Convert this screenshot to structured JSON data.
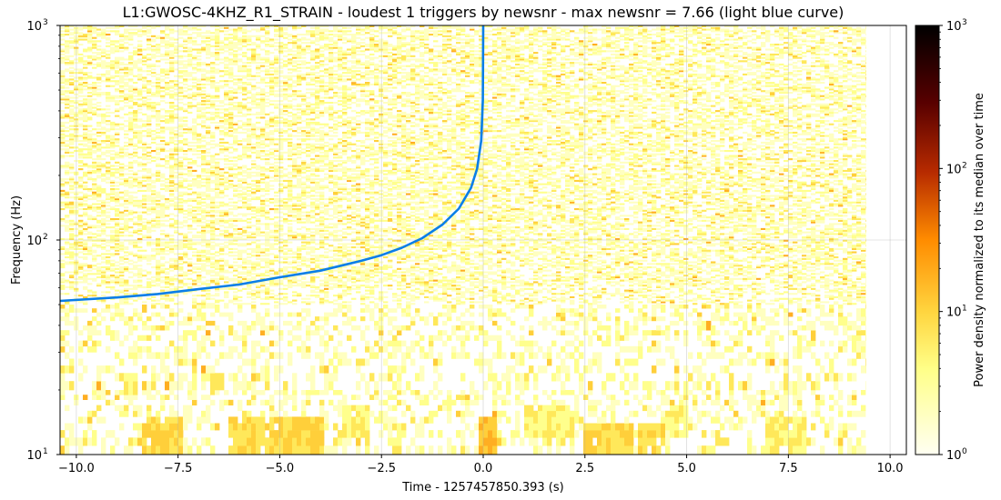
{
  "chart_data": {
    "type": "heatmap",
    "title": "L1:GWOSC-4KHZ_R1_STRAIN - loudest 1 triggers by newsnr - max newsnr = 7.66 (light blue curve)",
    "xlabel": "Time - 1257457850.393 (s)",
    "ylabel": "Frequency (Hz)",
    "colorbar_label": "Power density normalized to its median over time",
    "xlim": [
      -10.4,
      10.4
    ],
    "ylim": [
      10,
      1000
    ],
    "yscale": "log",
    "x_ticks": [
      -10.0,
      -7.5,
      -5.0,
      -2.5,
      0.0,
      2.5,
      5.0,
      7.5,
      10.0
    ],
    "x_tick_labels": [
      "−10.0",
      "−7.5",
      "−5.0",
      "−2.5",
      "0.0",
      "2.5",
      "5.0",
      "7.5",
      "10.0"
    ],
    "y_ticks": [
      {
        "base": "10",
        "exp": "1",
        "value": 10
      },
      {
        "base": "10",
        "exp": "2",
        "value": 100
      },
      {
        "base": "10",
        "exp": "3",
        "value": 1000
      }
    ],
    "colorbar_range": [
      1,
      1000
    ],
    "colorbar_scale": "log",
    "colorbar_ticks": [
      {
        "base": "10",
        "exp": "0",
        "value": 1
      },
      {
        "base": "10",
        "exp": "1",
        "value": 10
      },
      {
        "base": "10",
        "exp": "2",
        "value": 100
      },
      {
        "base": "10",
        "exp": "3",
        "value": 1000
      }
    ],
    "colormap": "afmhot_r",
    "data_time_extent": [
      -10.4,
      9.4
    ],
    "grid": true,
    "series": [
      {
        "type": "line",
        "color": "#0a7ee8",
        "x": [
          -10.4,
          -9.0,
          -8.0,
          -7.0,
          -6.0,
          -5.0,
          -4.0,
          -3.0,
          -2.5,
          -2.0,
          -1.5,
          -1.0,
          -0.6,
          -0.3,
          -0.15,
          -0.05,
          -0.01,
          0.0
        ],
        "y": [
          52,
          54,
          56,
          59,
          62,
          67,
          72,
          80,
          85,
          92,
          102,
          118,
          140,
          175,
          215,
          290,
          450,
          1000
        ]
      }
    ],
    "bright_features": [
      {
        "time": [
          -8.4,
          -7.4
        ],
        "freq": [
          10,
          14
        ],
        "level": 3
      },
      {
        "time": [
          -6.3,
          -4.0
        ],
        "freq": [
          10,
          14
        ],
        "level": 3
      },
      {
        "time": [
          -0.2,
          0.3
        ],
        "freq": [
          10,
          14
        ],
        "level": 4
      },
      {
        "time": [
          -2.3,
          -2.0
        ],
        "freq": [
          10,
          13
        ],
        "level": 2
      },
      {
        "time": [
          2.4,
          3.6
        ],
        "freq": [
          10,
          13
        ],
        "level": 3
      },
      {
        "time": [
          3.8,
          4.4
        ],
        "freq": [
          10,
          13
        ],
        "level": 3
      },
      {
        "time": [
          6.9,
          7.9
        ],
        "freq": [
          10,
          14
        ],
        "level": 2
      },
      {
        "time": [
          -6.8,
          -6.4
        ],
        "freq": [
          20,
          23
        ],
        "level": 3
      },
      {
        "time": [
          -3.5,
          -2.9
        ],
        "freq": [
          12,
          16
        ],
        "level": 2
      },
      {
        "time": [
          1.0,
          2.2
        ],
        "freq": [
          12,
          16
        ],
        "level": 2
      },
      {
        "time": [
          -9.0,
          -8.6
        ],
        "freq": [
          19,
          22
        ],
        "level": 2
      },
      {
        "time": [
          4.5,
          5.0
        ],
        "freq": [
          12,
          16
        ],
        "level": 2
      }
    ]
  }
}
